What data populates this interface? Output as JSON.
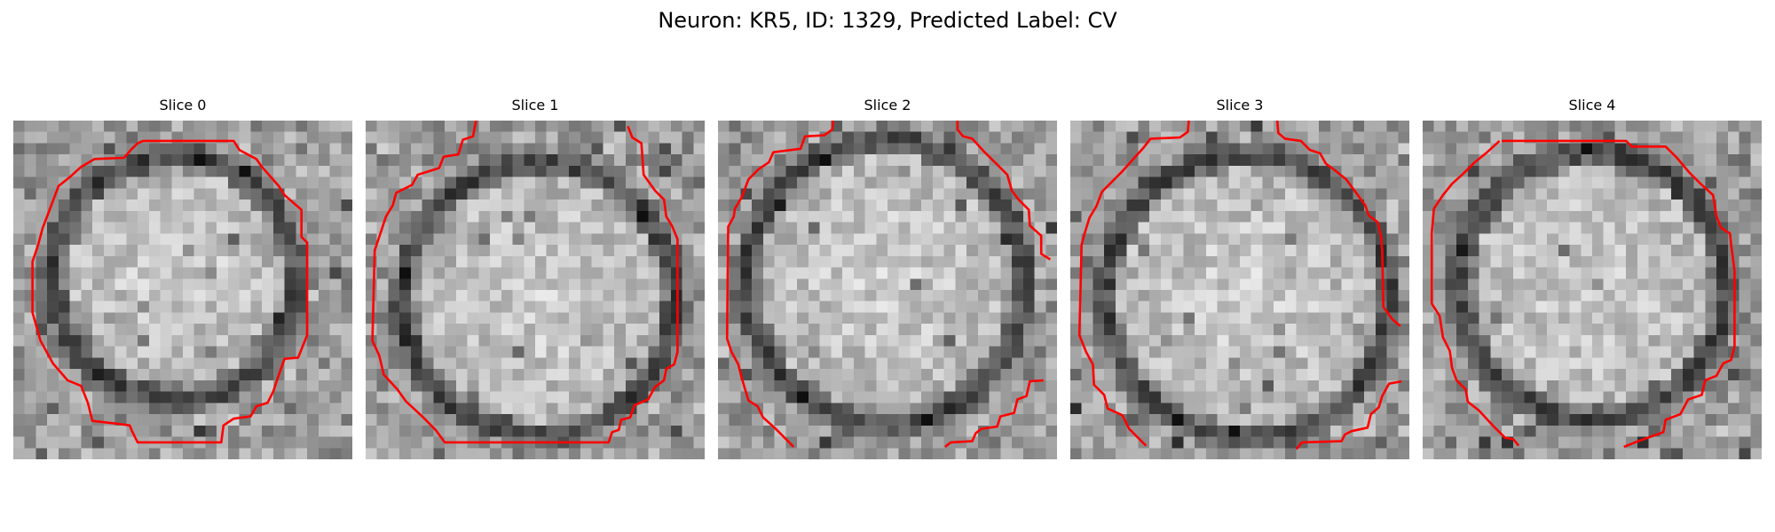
{
  "figure": {
    "title": "Neuron: KR5, ID: 1329, Predicted Label: CV"
  },
  "panels": [
    {
      "title": "Slice 0",
      "image": "grayscale-microscopy-slice",
      "outline_color": "#ff0000"
    },
    {
      "title": "Slice 1",
      "image": "grayscale-microscopy-slice",
      "outline_color": "#ff0000"
    },
    {
      "title": "Slice 2",
      "image": "grayscale-microscopy-slice",
      "outline_color": "#ff0000"
    },
    {
      "title": "Slice 3",
      "image": "grayscale-microscopy-slice",
      "outline_color": "#ff0000"
    },
    {
      "title": "Slice 4",
      "image": "grayscale-microscopy-slice",
      "outline_color": "#ff0000"
    }
  ],
  "colors": {
    "outline": "#ff0000",
    "background": "#ffffff",
    "text": "#000000"
  }
}
